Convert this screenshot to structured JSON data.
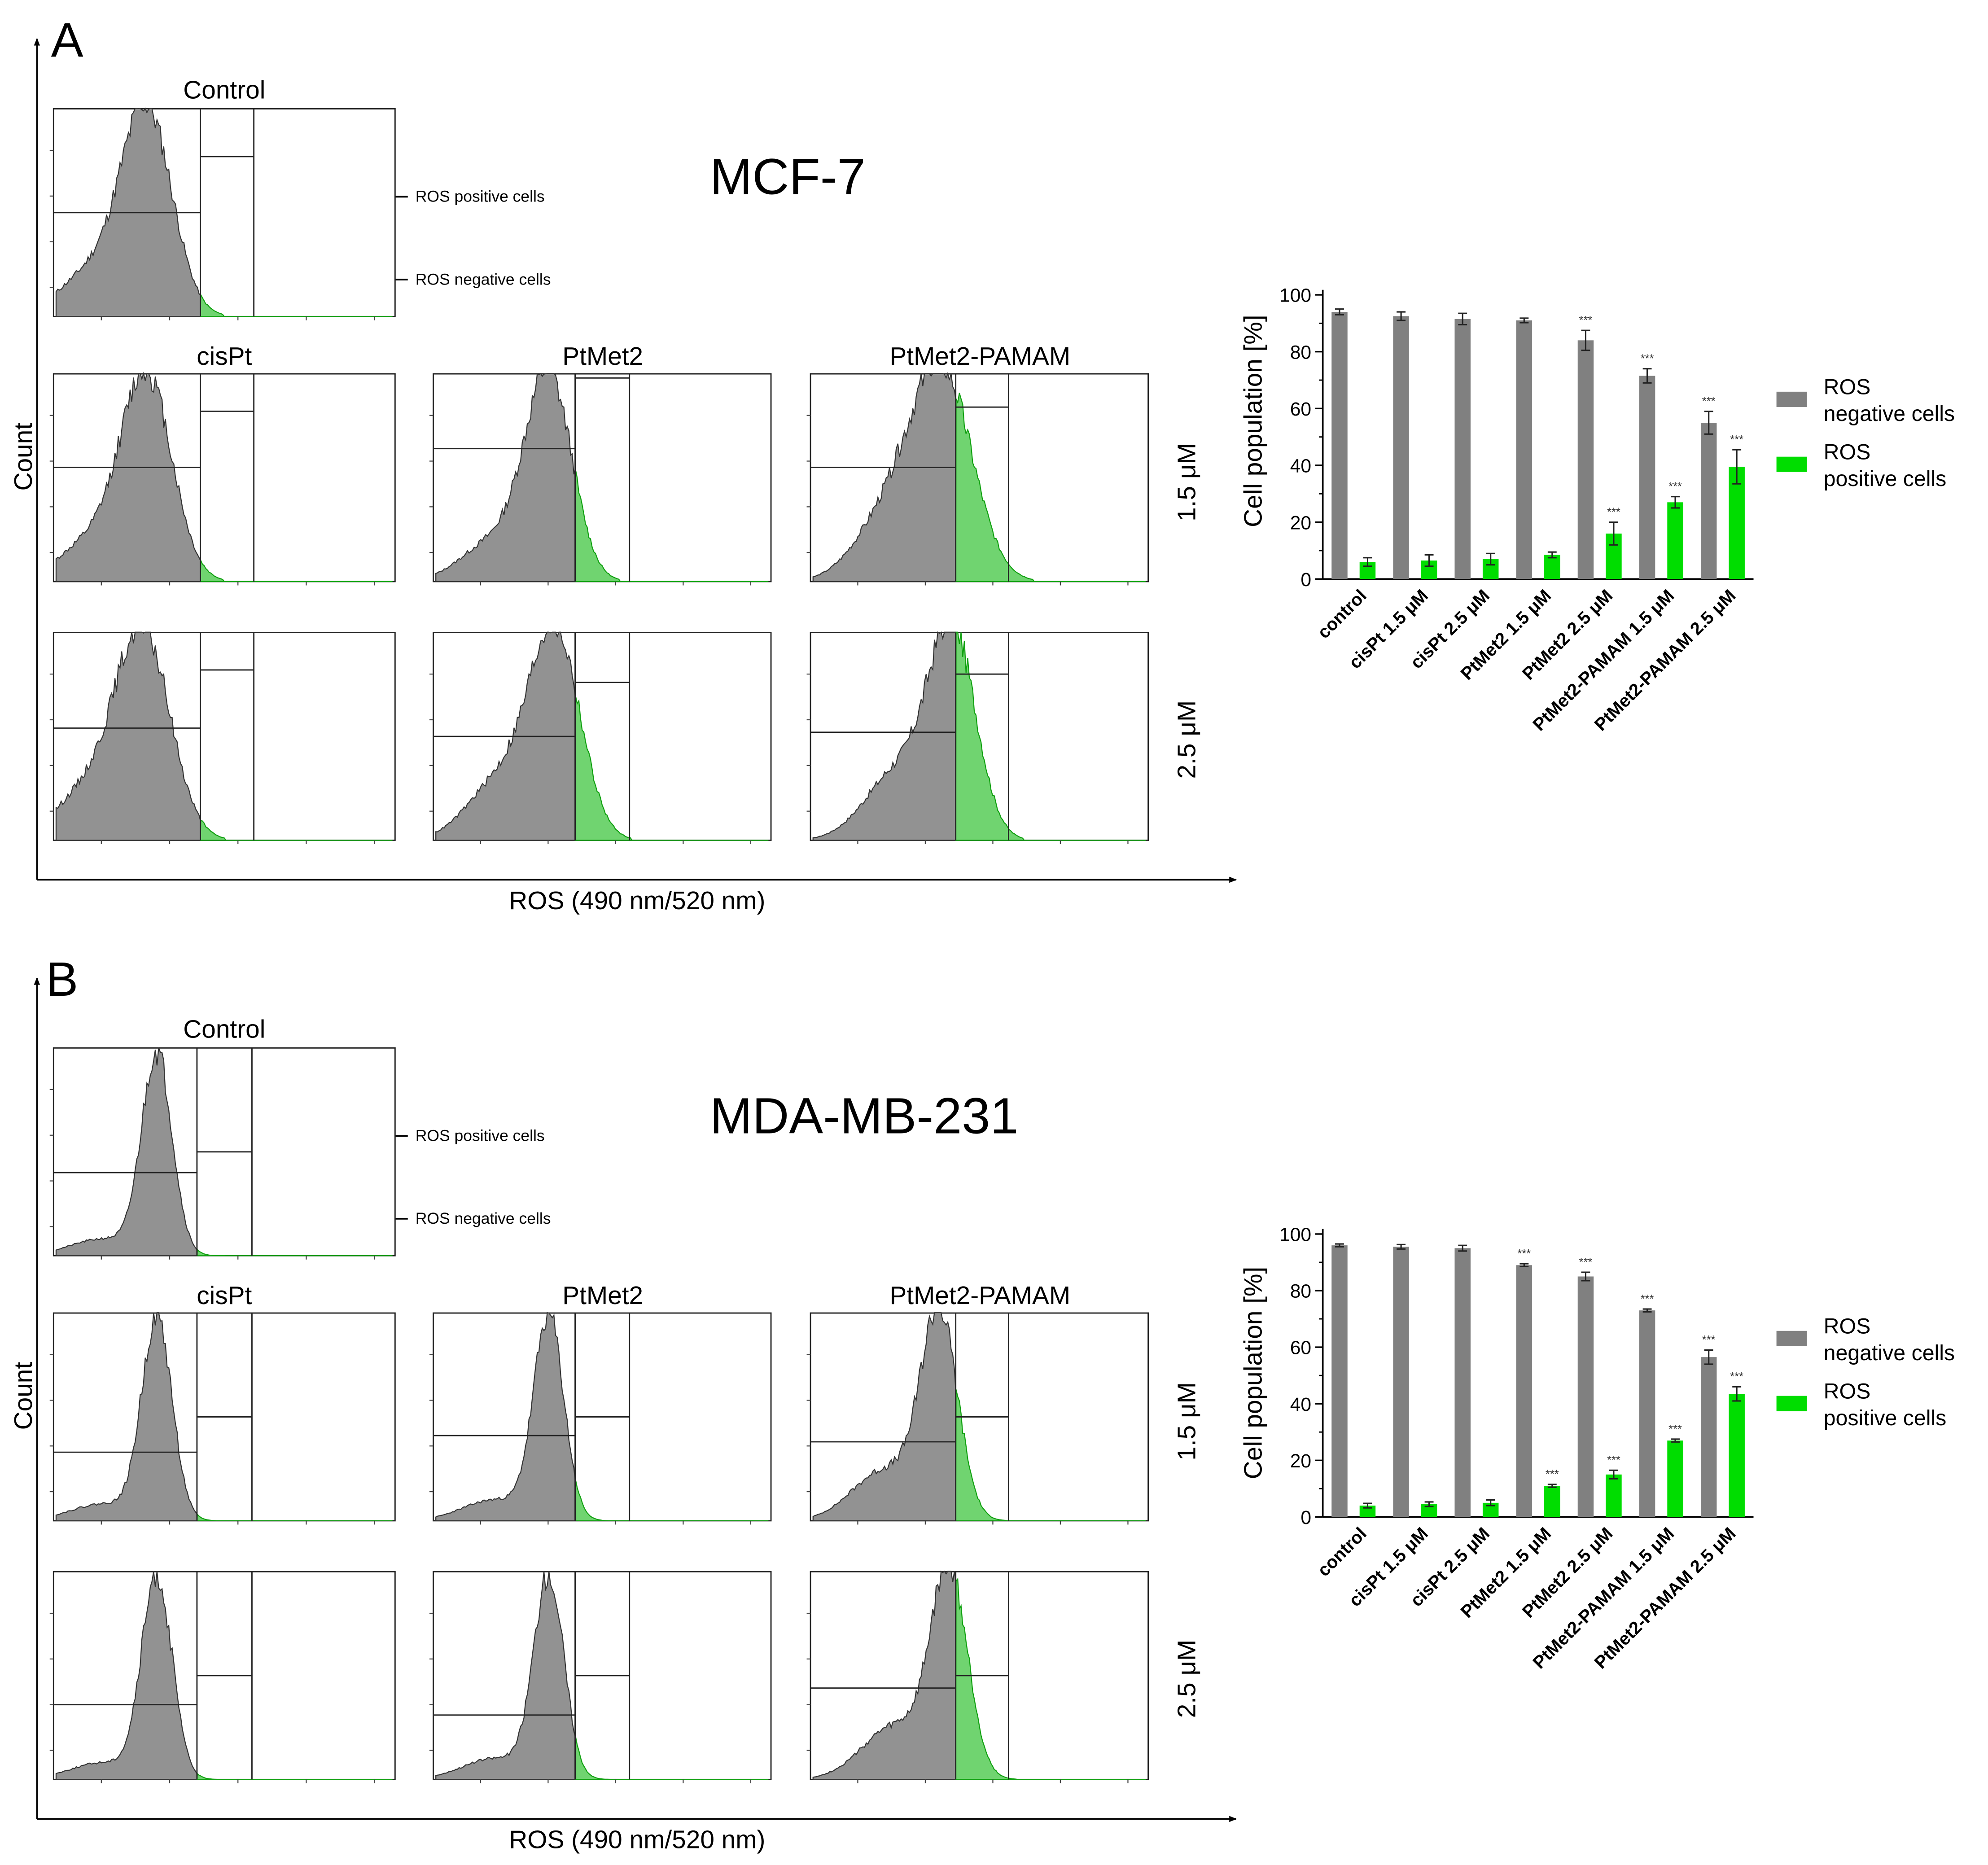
{
  "colors": {
    "negative": "#808080",
    "negative_hist": "#929292",
    "positive": "#00dd00",
    "positive_hist": "#70d470",
    "axis": "#000000"
  },
  "panels": [
    {
      "letter": "A",
      "cell_line": "MCF-7",
      "count_label": "Count",
      "x_axis_label": "ROS (490 nm/520 nm)",
      "control_label": "Control",
      "treatments": [
        "cisPt",
        "PtMet2",
        "PtMet2-PAMAM"
      ],
      "concentrations": [
        "1.5 μM",
        "2.5 μM"
      ],
      "annotations": {
        "positive": "ROS positive cells",
        "negative": "ROS negative cells"
      }
    },
    {
      "letter": "B",
      "cell_line": "MDA-MB-231",
      "count_label": "Count",
      "x_axis_label": "ROS (490 nm/520 nm)",
      "control_label": "Control",
      "treatments": [
        "cisPt",
        "PtMet2",
        "PtMet2-PAMAM"
      ],
      "concentrations": [
        "1.5 μM",
        "2.5 μM"
      ],
      "annotations": {
        "positive": "ROS positive cells",
        "negative": "ROS negative cells"
      }
    }
  ],
  "chart_data": [
    {
      "type": "bar",
      "ylabel": "Cell population [%]",
      "xlabel": "",
      "ylim": [
        0,
        100
      ],
      "yticks": [
        0,
        20,
        40,
        60,
        80,
        100
      ],
      "categories": [
        "control",
        "cisPt 1.5 μM",
        "cisPt 2.5 μM",
        "PtMet2 1.5 μM",
        "PtMet2 2.5 μM",
        "PtMet2-PAMAM 1.5 μM",
        "PtMet2-PAMAM 2.5 μM"
      ],
      "series": [
        {
          "name": "ROS negative cells",
          "legend_lines": [
            "ROS",
            "negative cells"
          ],
          "color": "#808080",
          "values": [
            94,
            92.5,
            91.5,
            91,
            84,
            71.5,
            55
          ],
          "errors": [
            1,
            1.5,
            2,
            0.8,
            3.5,
            2.5,
            4
          ],
          "significance": [
            "",
            "",
            "",
            "",
            "***",
            "***",
            "***"
          ]
        },
        {
          "name": "ROS positive cells",
          "legend_lines": [
            "ROS",
            "positive cells"
          ],
          "color": "#00dd00",
          "values": [
            6,
            6.5,
            7,
            8.5,
            16,
            27,
            39.5
          ],
          "errors": [
            1.5,
            2,
            2,
            1,
            4,
            2,
            6
          ],
          "significance": [
            "",
            "",
            "",
            "",
            "***",
            "***",
            "***"
          ]
        }
      ],
      "legend": "right"
    },
    {
      "type": "bar",
      "ylabel": "Cell population [%]",
      "xlabel": "",
      "ylim": [
        0,
        100
      ],
      "yticks": [
        0,
        20,
        40,
        60,
        80,
        100
      ],
      "categories": [
        "control",
        "cisPt 1.5 μM",
        "cisPt 2.5 μM",
        "PtMet2 1.5 μM",
        "PtMet2 2.5 μM",
        "PtMet2-PAMAM 1.5 μM",
        "PtMet2-PAMAM 2.5 μM"
      ],
      "series": [
        {
          "name": "ROS negative cells",
          "legend_lines": [
            "ROS",
            "negative cells"
          ],
          "color": "#808080",
          "values": [
            96,
            95.5,
            95,
            89,
            85,
            73,
            56.5
          ],
          "errors": [
            0.5,
            0.8,
            1,
            0.5,
            1.5,
            0.5,
            2.5
          ],
          "significance": [
            "",
            "",
            "",
            "***",
            "***",
            "***",
            "***"
          ]
        },
        {
          "name": "ROS positive cells",
          "legend_lines": [
            "ROS",
            "positive cells"
          ],
          "color": "#00dd00",
          "values": [
            4,
            4.5,
            5,
            11,
            15,
            27,
            43.5
          ],
          "errors": [
            0.8,
            0.8,
            1,
            0.5,
            1.5,
            0.5,
            2.5
          ],
          "significance": [
            "",
            "",
            "",
            "***",
            "***",
            "***",
            "***"
          ]
        }
      ],
      "legend": "right"
    }
  ]
}
